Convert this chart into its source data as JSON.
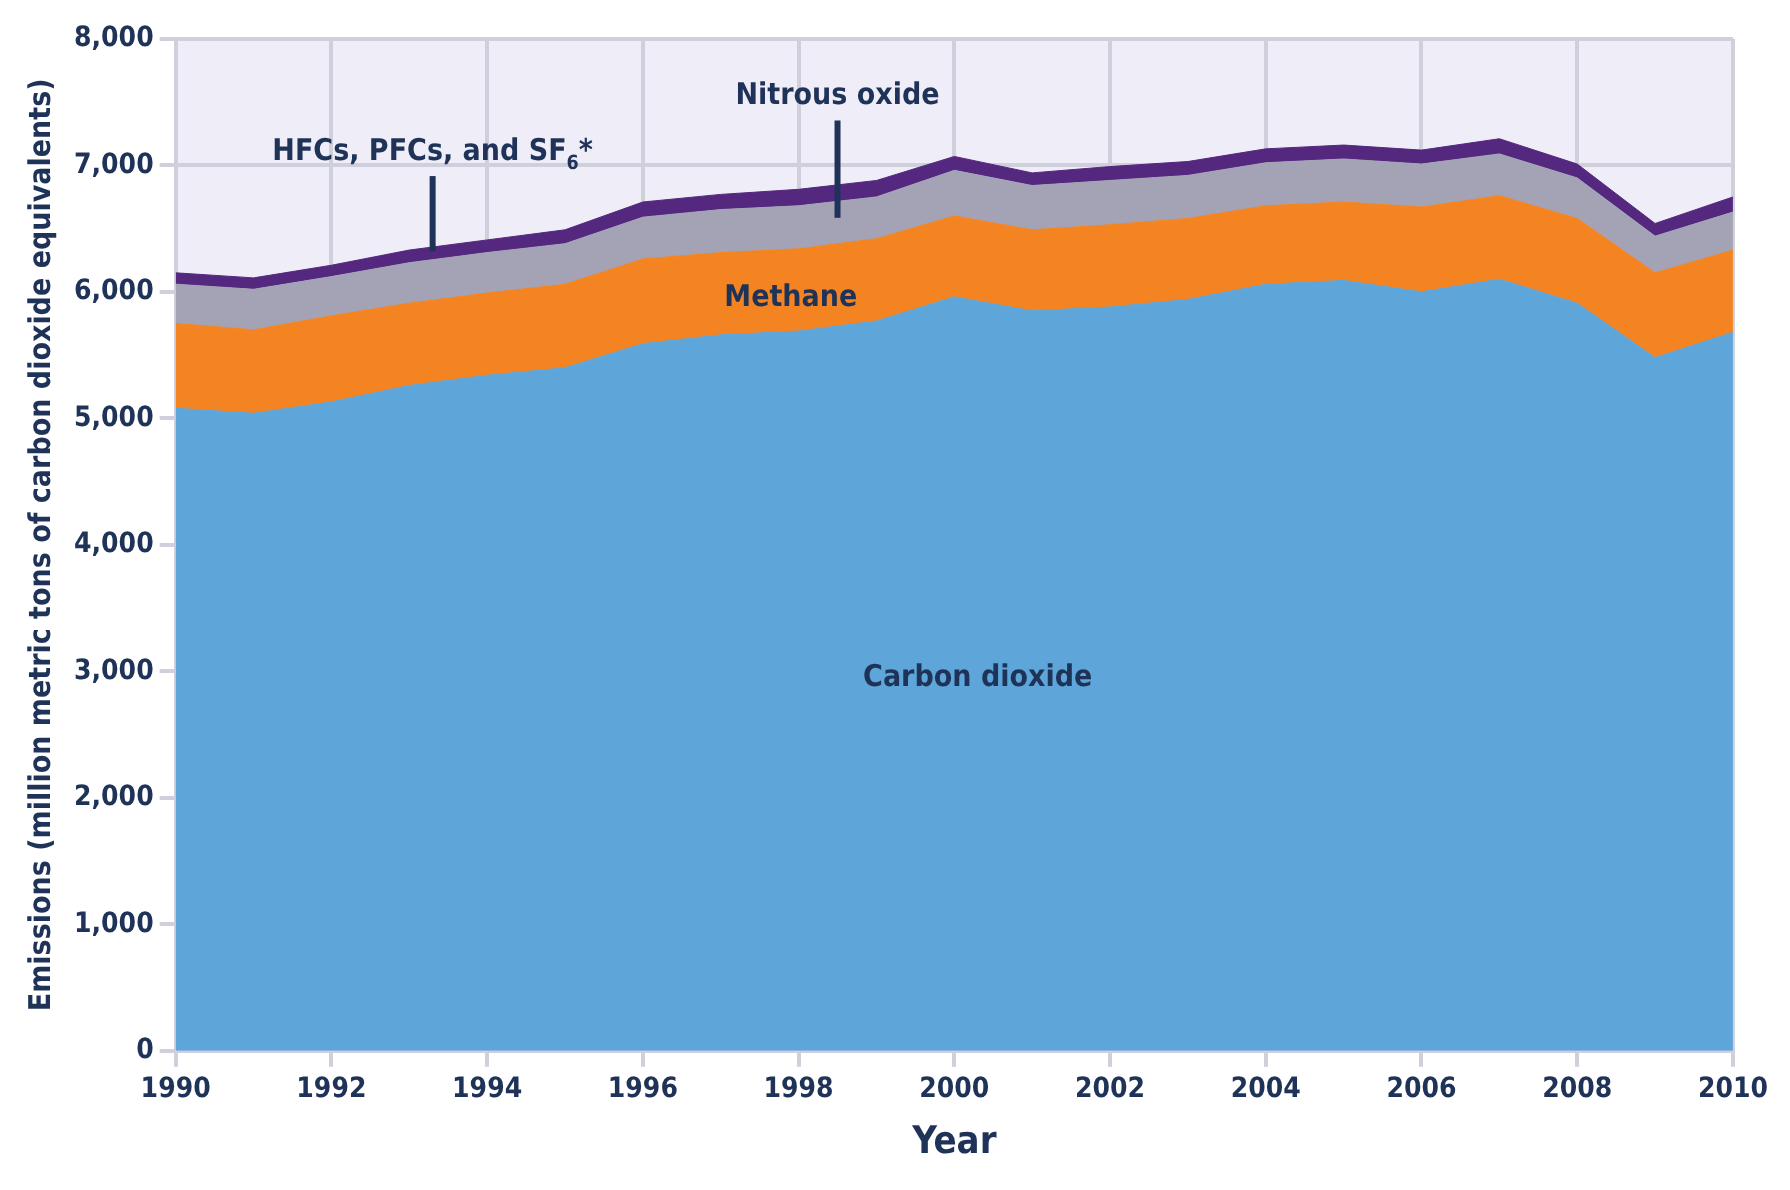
{
  "chart_data": {
    "type": "area",
    "stacked": true,
    "xlabel": "Year",
    "ylabel": "Emissions (million metric tons of carbon dioxide equivalents)",
    "x": [
      1990,
      1991,
      1992,
      1993,
      1994,
      1995,
      1996,
      1997,
      1998,
      1999,
      2000,
      2001,
      2002,
      2003,
      2004,
      2005,
      2006,
      2007,
      2008,
      2009,
      2010
    ],
    "xlim": [
      1990,
      2010
    ],
    "xticks": [
      1990,
      1992,
      1994,
      1996,
      1998,
      2000,
      2002,
      2004,
      2006,
      2008,
      2010
    ],
    "ylim": [
      0,
      8000
    ],
    "yticks": [
      {
        "value": 0,
        "label": "0"
      },
      {
        "value": 1000,
        "label": "1,000"
      },
      {
        "value": 2000,
        "label": "2,000"
      },
      {
        "value": 3000,
        "label": "3,000"
      },
      {
        "value": 4000,
        "label": "4,000"
      },
      {
        "value": 5000,
        "label": "5,000"
      },
      {
        "value": 6000,
        "label": "6,000"
      },
      {
        "value": 7000,
        "label": "7,000"
      },
      {
        "value": 8000,
        "label": "8,000"
      }
    ],
    "grid": true,
    "legend": false,
    "series": [
      {
        "name": "Carbon dioxide",
        "color": "#5ea5da",
        "values": [
          5080,
          5040,
          5130,
          5260,
          5340,
          5400,
          5590,
          5660,
          5690,
          5770,
          5960,
          5850,
          5880,
          5940,
          6060,
          6090,
          6000,
          6100,
          5910,
          5480,
          5680
        ]
      },
      {
        "name": "Methane",
        "color": "#f38421",
        "values": [
          670,
          660,
          680,
          650,
          650,
          660,
          670,
          650,
          650,
          650,
          640,
          640,
          650,
          640,
          620,
          620,
          670,
          660,
          670,
          670,
          650
        ]
      },
      {
        "name": "Nitrous oxide",
        "color": "#a3a3b5",
        "values": [
          310,
          320,
          310,
          320,
          320,
          320,
          330,
          340,
          340,
          330,
          360,
          350,
          350,
          340,
          340,
          340,
          340,
          330,
          320,
          290,
          300
        ]
      },
      {
        "name": "HFCs, PFCs, and SF$_{6}$*",
        "color": "#55287f",
        "values": [
          90,
          90,
          90,
          100,
          100,
          110,
          120,
          120,
          130,
          130,
          110,
          100,
          110,
          110,
          110,
          110,
          110,
          120,
          110,
          100,
          120
        ]
      }
    ]
  }
}
